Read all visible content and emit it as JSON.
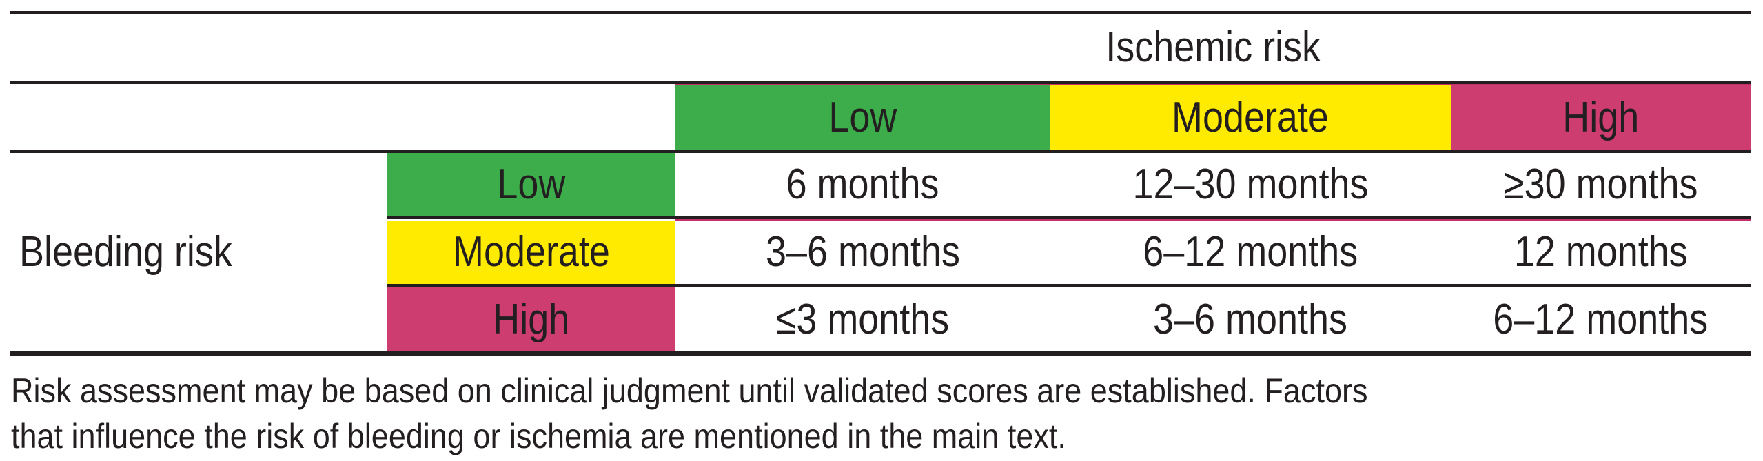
{
  "colors": {
    "green": "#3DAC4B",
    "yellow": "#FFEB00",
    "pink": "#CE3D70",
    "rule_black": "#231F20",
    "rule_crimson": "#C62E68",
    "text": "#231F20",
    "background": "#FFFFFF"
  },
  "table": {
    "ischemic_axis_label": "Ischemic risk",
    "bleeding_axis_label": "Bleeding risk",
    "ischemic_levels": [
      {
        "label": "Low",
        "color": "#3DAC4B"
      },
      {
        "label": "Moderate",
        "color": "#FFEB00"
      },
      {
        "label": "High",
        "color": "#CE3D70"
      }
    ],
    "rows": [
      {
        "bleeding_level": "Low",
        "color": "#3DAC4B",
        "durations": [
          "6 months",
          "12–30 months",
          "≥30 months"
        ]
      },
      {
        "bleeding_level": "Moderate",
        "color": "#FFEB00",
        "durations": [
          "3–6 months",
          "6–12 months",
          "12 months"
        ]
      },
      {
        "bleeding_level": "High",
        "color": "#CE3D70",
        "durations": [
          "≤3 months",
          "3–6 months",
          "6–12 months"
        ]
      }
    ]
  },
  "footnote": {
    "lines": [
      "Risk assessment may be based on clinical judgment until validated scores are established. Factors",
      "that influence the risk of bleeding or ischemia are mentioned in the main text."
    ],
    "text": "Risk assessment may be based on clinical judgment until validated scores are established. Factors that influence the risk of bleeding or ischemia are mentioned in the main text."
  }
}
